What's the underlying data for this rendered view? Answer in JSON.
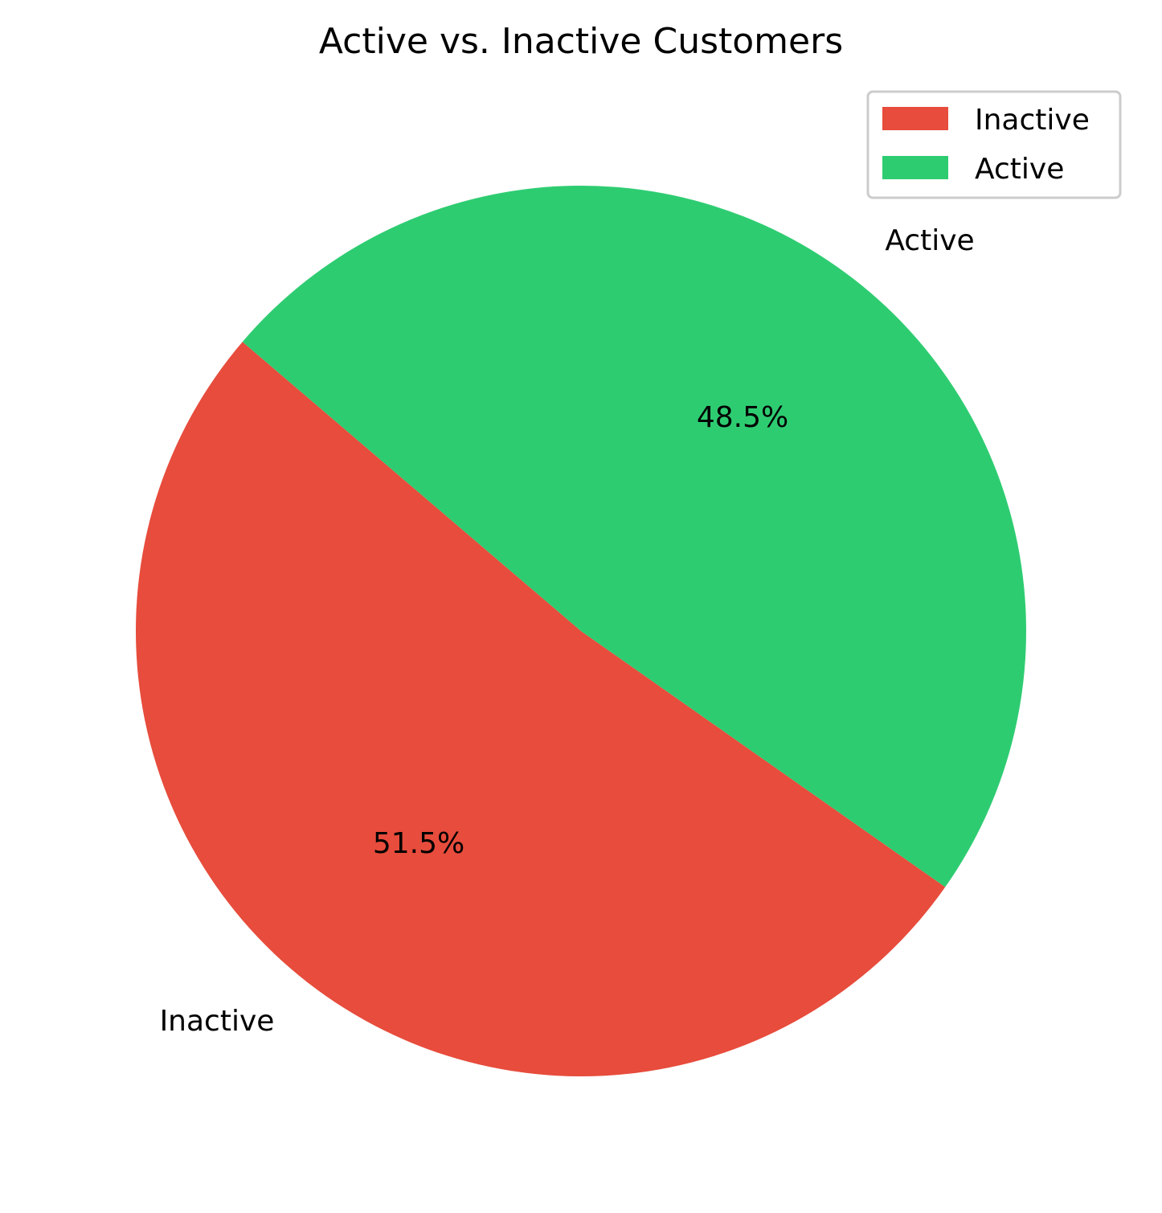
{
  "chart_data": {
    "type": "pie",
    "title": "Active vs. Inactive Customers",
    "categories": [
      "Inactive",
      "Active"
    ],
    "values": [
      51.5,
      48.5
    ],
    "percent_labels": [
      "51.5%",
      "48.5%"
    ],
    "colors": [
      "#e74c3c",
      "#2ecc71"
    ],
    "legend": {
      "placement": "top-right",
      "entries": [
        "Inactive",
        "Active"
      ]
    }
  }
}
